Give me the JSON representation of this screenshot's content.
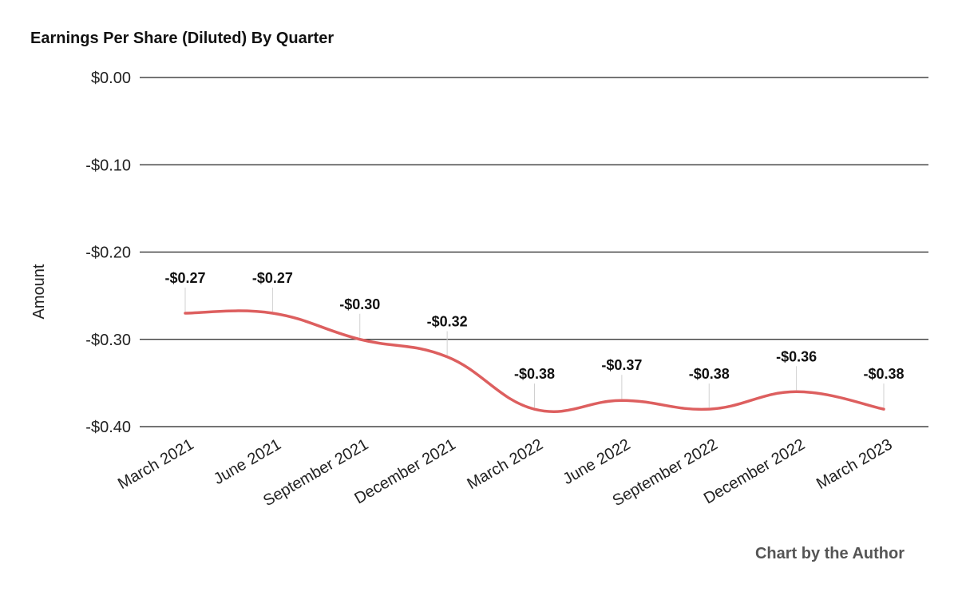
{
  "chart_data": {
    "type": "line",
    "title": "Earnings Per Share (Diluted) By Quarter",
    "ylabel": "Amount",
    "xlabel": "",
    "categories": [
      "March 2021",
      "June 2021",
      "September 2021",
      "December 2021",
      "March 2022",
      "June 2022",
      "September 2022",
      "December 2022",
      "March 2023"
    ],
    "series": [
      {
        "values": [
          -0.27,
          -0.27,
          -0.3,
          -0.32,
          -0.38,
          -0.37,
          -0.38,
          -0.36,
          -0.38
        ],
        "data_labels": [
          "-$0.27",
          "-$0.27",
          "-$0.30",
          "-$0.32",
          "-$0.38",
          "-$0.37",
          "-$0.38",
          "-$0.36",
          "-$0.38"
        ],
        "color": "#dd5f5f"
      }
    ],
    "ylim": [
      -0.4,
      0.0
    ],
    "yticks": [
      0.0,
      -0.1,
      -0.2,
      -0.3,
      -0.4
    ],
    "ytick_labels": [
      "$0.00",
      "-$0.10",
      "-$0.20",
      "-$0.30",
      "-$0.40"
    ],
    "grid": true,
    "legend": "none",
    "smooth": true
  },
  "credit": "Chart by the Author"
}
